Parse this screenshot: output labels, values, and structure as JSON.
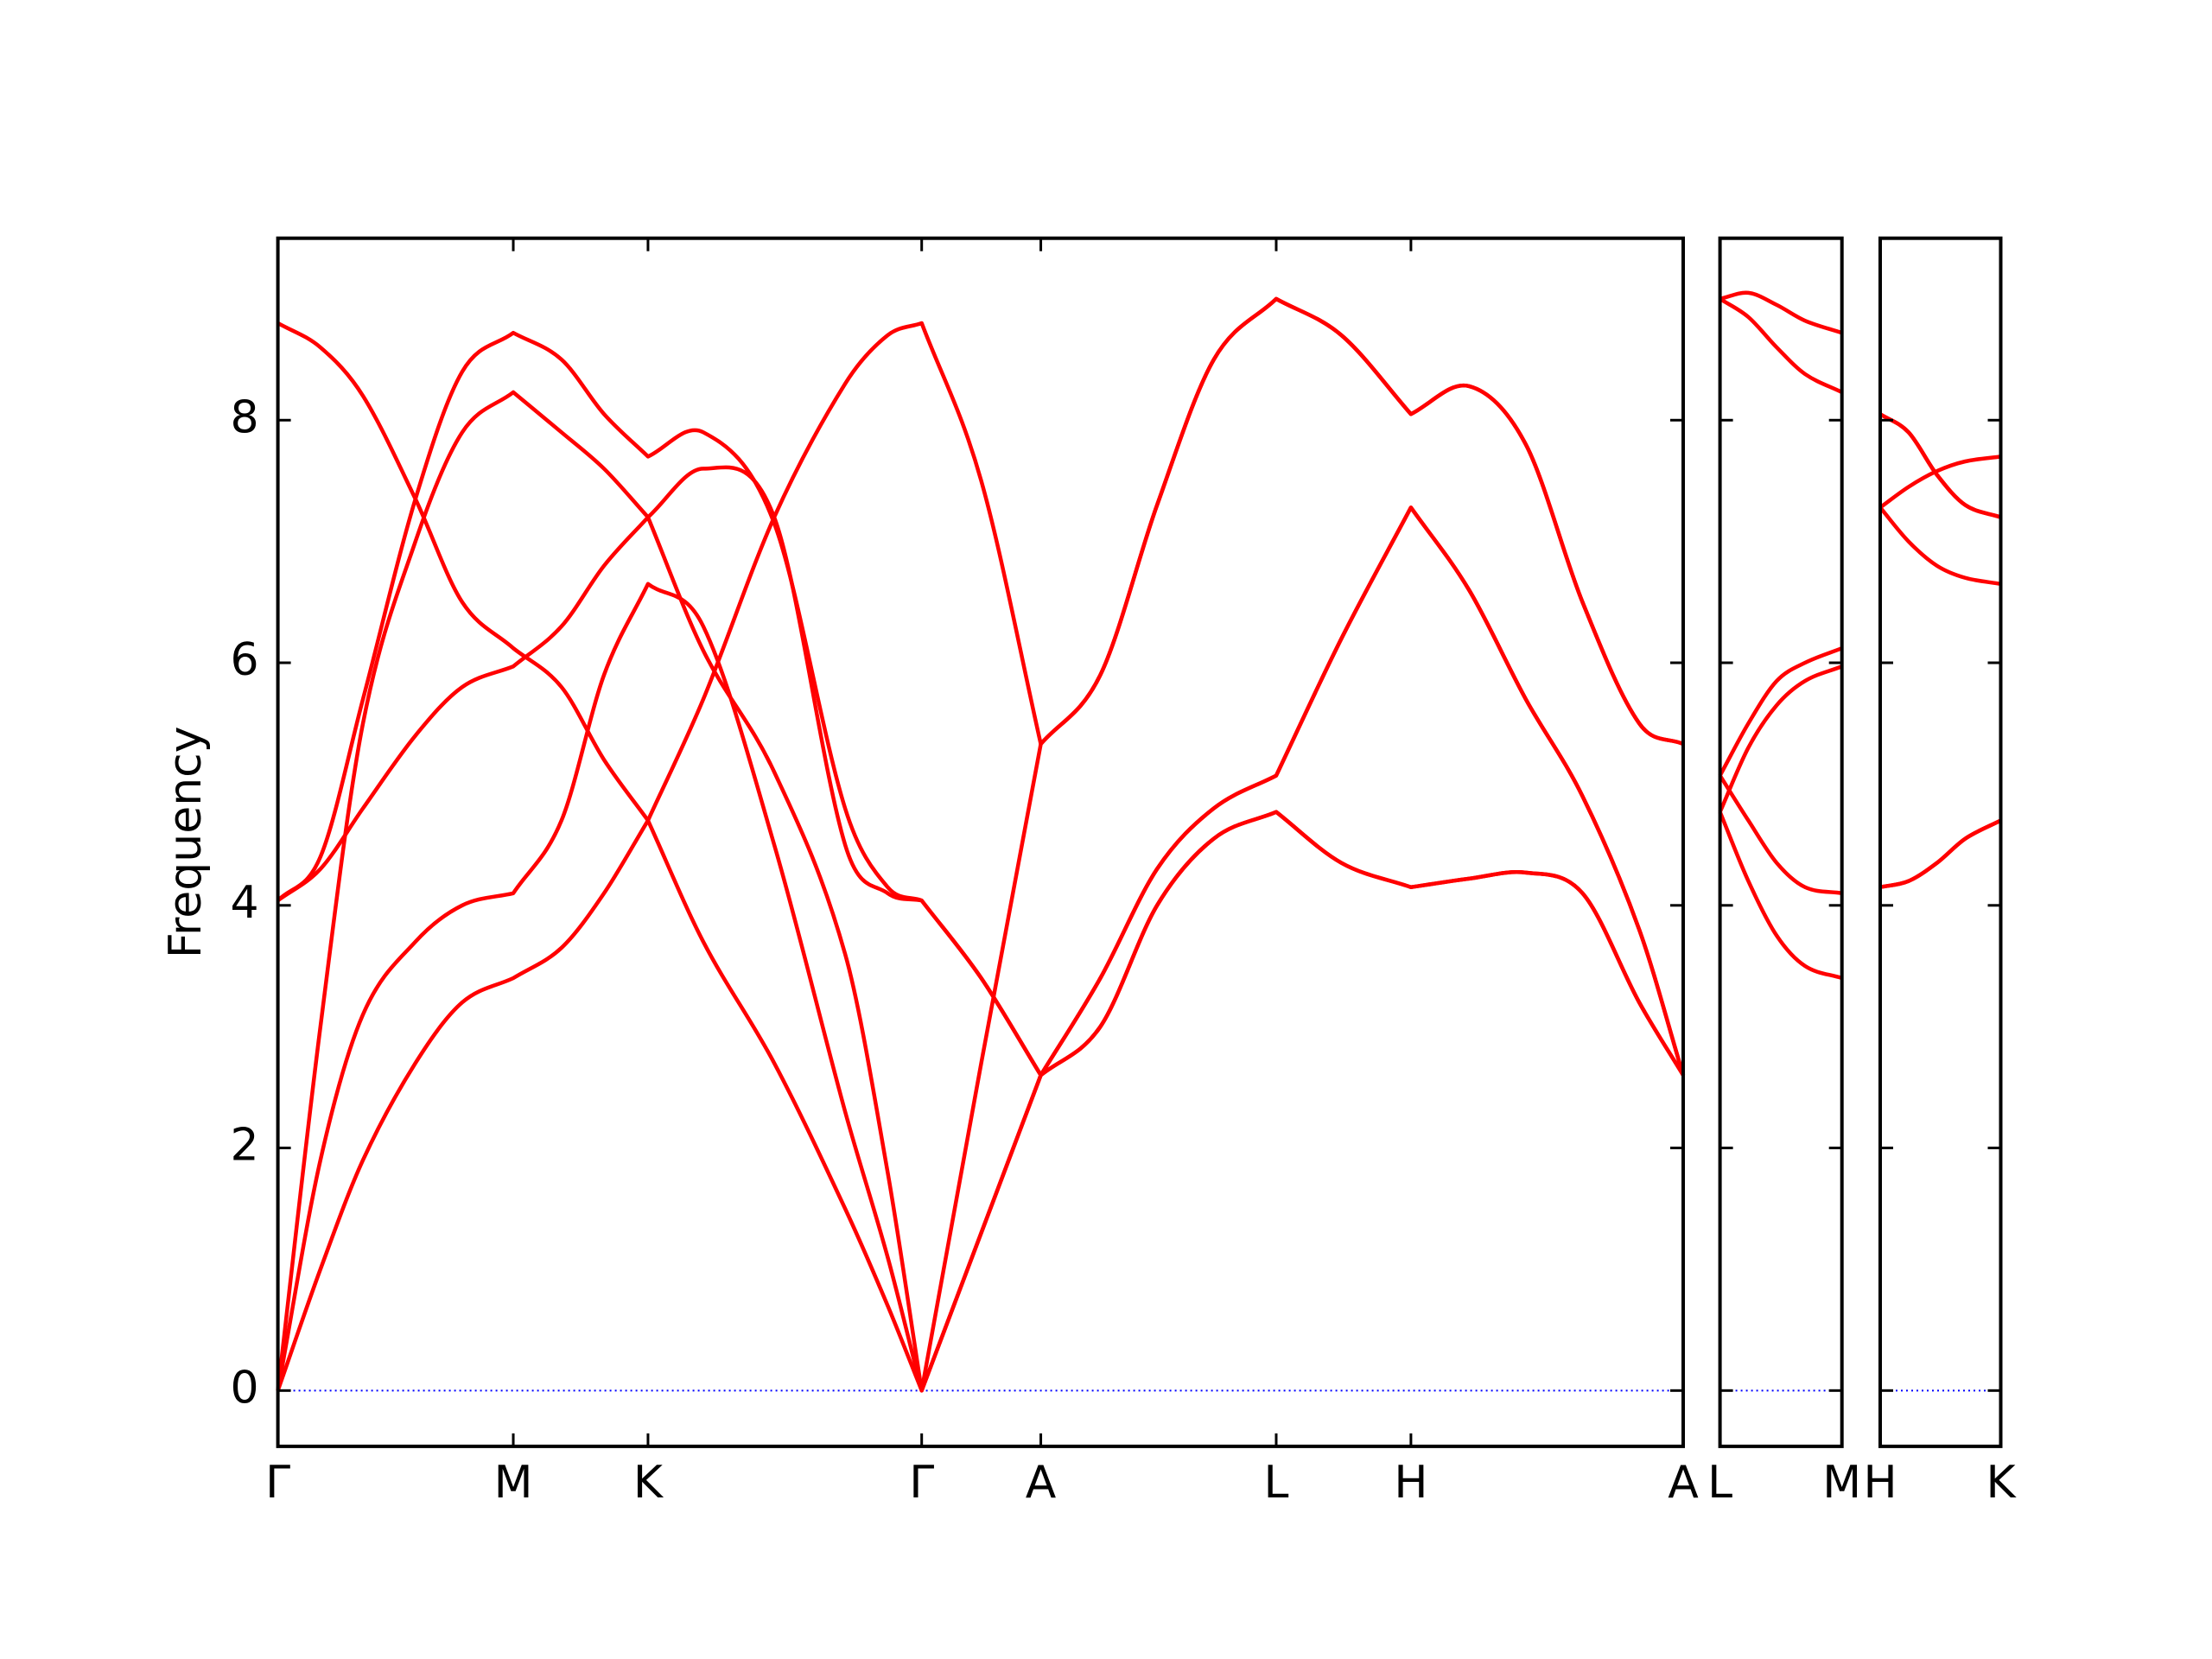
{
  "chart_data": [
    {
      "type": "line",
      "ylabel": "Frequency",
      "show_ytick_labels": true,
      "ylim": [
        -0.46,
        9.5
      ],
      "yticks": [
        0,
        2,
        4,
        6,
        8
      ],
      "xlim": [
        0,
        9.91
      ],
      "xticks": [
        {
          "value": 0,
          "label": "Γ"
        },
        {
          "value": 1.66,
          "label": "M"
        },
        {
          "value": 2.61,
          "label": "K"
        },
        {
          "value": 4.54,
          "label": "Γ"
        },
        {
          "value": 5.38,
          "label": "A"
        },
        {
          "value": 7.04,
          "label": "L"
        },
        {
          "value": 7.99,
          "label": "H"
        },
        {
          "value": 9.91,
          "label": "A"
        }
      ],
      "hline": {
        "y": 0,
        "color": "#0000ff"
      },
      "x": [
        0,
        0.3,
        0.6,
        0.97,
        1.3,
        1.66,
        2.0,
        2.3,
        2.61,
        3.0,
        3.5,
        4.0,
        4.3,
        4.54,
        4.96,
        5.38,
        5.8,
        6.2,
        6.6,
        7.04,
        7.5,
        7.99,
        8.4,
        8.8,
        9.2,
        9.6,
        9.91
      ],
      "series": [
        {
          "color": "#ff0000",
          "values": [
            8.8,
            8.6,
            8.2,
            7.35,
            6.5,
            6.12,
            5.8,
            5.2,
            4.7,
            3.7,
            2.7,
            1.5,
            0.7,
            0,
            1.3,
            2.6,
            3.0,
            4.0,
            4.55,
            4.77,
            4.35,
            4.15,
            4.22,
            4.27,
            4.1,
            3.2,
            2.6
          ]
        },
        {
          "color": "#ff0000",
          "values": [
            0,
            1.0,
            1.9,
            2.7,
            3.2,
            3.4,
            3.65,
            4.1,
            4.7,
            5.7,
            7.2,
            8.3,
            8.7,
            8.8,
            7.5,
            5.33,
            5.9,
            7.3,
            8.5,
            9.0,
            8.7,
            8.05,
            8.28,
            7.8,
            6.5,
            5.5,
            5.33
          ]
        },
        {
          "color": "#ff0000",
          "values": [
            0,
            1.9,
            3.1,
            3.7,
            4.0,
            4.1,
            4.7,
            5.9,
            6.65,
            6.3,
            4.5,
            2.3,
            1.1,
            0,
            2.7,
            5.33,
            5.9,
            7.3,
            8.5,
            9.0,
            8.7,
            8.05,
            8.28,
            7.8,
            6.5,
            5.5,
            5.33
          ]
        },
        {
          "color": "#ff0000",
          "values": [
            4.04,
            4.3,
            4.8,
            5.4,
            5.8,
            5.97,
            6.3,
            6.8,
            7.2,
            6.1,
            5.1,
            3.6,
            1.8,
            0,
            1.3,
            2.6,
            3.4,
            4.3,
            4.8,
            5.07,
            6.2,
            7.28,
            6.6,
            5.7,
            4.9,
            3.8,
            2.6
          ]
        },
        {
          "color": "#ff0000",
          "values": [
            4.04,
            4.4,
            5.7,
            7.35,
            8.4,
            8.72,
            8.5,
            8.05,
            7.7,
            7.9,
            7.15,
            4.8,
            4.15,
            4.04,
            3.4,
            2.6,
            3.0,
            4.0,
            4.55,
            4.77,
            4.35,
            4.15,
            4.22,
            4.27,
            4.1,
            3.2,
            2.6
          ]
        },
        {
          "color": "#ff0000",
          "values": [
            0,
            3.0,
            5.5,
            7.0,
            7.9,
            8.23,
            7.9,
            7.6,
            7.2,
            7.6,
            7.2,
            4.5,
            4.1,
            4.04,
            3.4,
            2.6,
            3.4,
            4.3,
            4.8,
            5.07,
            6.2,
            7.28,
            6.6,
            5.7,
            4.9,
            3.8,
            2.6
          ]
        }
      ]
    },
    {
      "type": "line",
      "show_ytick_labels": false,
      "ylim": [
        -0.46,
        9.5
      ],
      "yticks": [
        0,
        2,
        4,
        6,
        8
      ],
      "xlim": [
        0,
        0.86
      ],
      "xticks": [
        {
          "value": 0,
          "label": "L"
        },
        {
          "value": 0.86,
          "label": "M"
        }
      ],
      "hline": {
        "y": 0,
        "color": "#0000ff"
      },
      "x": [
        0,
        0.2,
        0.4,
        0.6,
        0.86
      ],
      "series": [
        {
          "color": "#ff0000",
          "values": [
            9.0,
            9.05,
            8.95,
            8.82,
            8.72
          ]
        },
        {
          "color": "#ff0000",
          "values": [
            9.0,
            8.85,
            8.6,
            8.38,
            8.23
          ]
        },
        {
          "color": "#ff0000",
          "values": [
            5.07,
            5.5,
            5.85,
            6.0,
            6.12
          ]
        },
        {
          "color": "#ff0000",
          "values": [
            4.77,
            5.3,
            5.65,
            5.85,
            5.97
          ]
        },
        {
          "color": "#ff0000",
          "values": [
            5.07,
            4.7,
            4.35,
            4.15,
            4.1
          ]
        },
        {
          "color": "#ff0000",
          "values": [
            4.77,
            4.2,
            3.75,
            3.5,
            3.4
          ]
        }
      ]
    },
    {
      "type": "line",
      "show_ytick_labels": false,
      "ylim": [
        -0.46,
        9.5
      ],
      "yticks": [
        0,
        2,
        4,
        6,
        8
      ],
      "xlim": [
        0,
        0.85
      ],
      "xticks": [
        {
          "value": 0,
          "label": "H"
        },
        {
          "value": 0.85,
          "label": "K"
        }
      ],
      "hline": {
        "y": 0,
        "color": "#0000ff"
      },
      "x": [
        0,
        0.2,
        0.4,
        0.6,
        0.85
      ],
      "series": [
        {
          "color": "#ff0000",
          "values": [
            8.05,
            7.9,
            7.55,
            7.3,
            7.2
          ]
        },
        {
          "color": "#ff0000",
          "values": [
            8.05,
            7.9,
            7.55,
            7.3,
            7.2
          ]
        },
        {
          "color": "#ff0000",
          "values": [
            7.28,
            7.45,
            7.58,
            7.66,
            7.7
          ]
        },
        {
          "color": "#ff0000",
          "values": [
            7.28,
            7.0,
            6.8,
            6.7,
            6.65
          ]
        },
        {
          "color": "#ff0000",
          "values": [
            4.15,
            4.2,
            4.35,
            4.55,
            4.7
          ]
        },
        {
          "color": "#ff0000",
          "values": [
            4.15,
            4.2,
            4.35,
            4.55,
            4.7
          ]
        }
      ]
    }
  ]
}
